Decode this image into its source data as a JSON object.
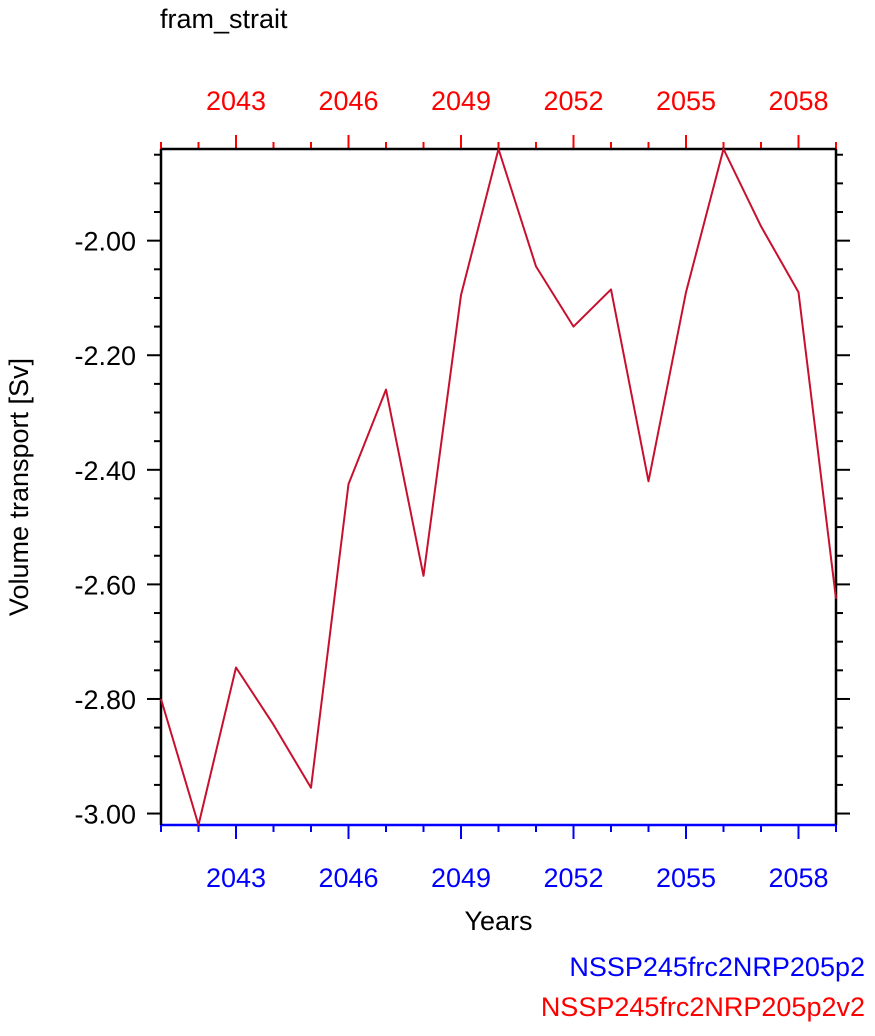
{
  "title": "fram_strait",
  "chart_data": {
    "type": "line",
    "title": "fram_strait",
    "xlabel": "Years",
    "ylabel": "Volume transport [Sv]",
    "xlim": [
      2041,
      2059
    ],
    "ylim": [
      -3.02,
      -1.84
    ],
    "x_ticks": [
      2043,
      2046,
      2049,
      2052,
      2055,
      2058
    ],
    "x_tick_labels": [
      "2043",
      "2046",
      "2049",
      "2052",
      "2055",
      "2058"
    ],
    "y_ticks": [
      -3.0,
      -2.8,
      -2.6,
      -2.4,
      -2.2,
      -2.0
    ],
    "y_tick_labels": [
      "-3.00",
      "-2.80",
      "-2.60",
      "-2.40",
      "-2.20",
      "-2.00"
    ],
    "top_axis_color": "#ff0000",
    "bottom_axis_color": "#0000ff",
    "series": [
      {
        "name": "NSSP245frc2NRP205p2v2",
        "color": "#c8102e",
        "x": [
          2041,
          2042,
          2043,
          2044,
          2045,
          2046,
          2047,
          2048,
          2049,
          2050,
          2051,
          2052,
          2053,
          2054,
          2055,
          2056,
          2057,
          2058,
          2059
        ],
        "y": [
          -2.8,
          -3.02,
          -2.745,
          -2.845,
          -2.955,
          -2.425,
          -2.26,
          -2.585,
          -2.095,
          -1.84,
          -2.045,
          -2.15,
          -2.085,
          -2.42,
          -2.09,
          -1.84,
          -1.975,
          -2.09,
          -2.625
        ]
      }
    ]
  },
  "legend": {
    "blue_label": "NSSP245frc2NRP205p2",
    "red_label": "NSSP245frc2NRP205p2v2"
  }
}
